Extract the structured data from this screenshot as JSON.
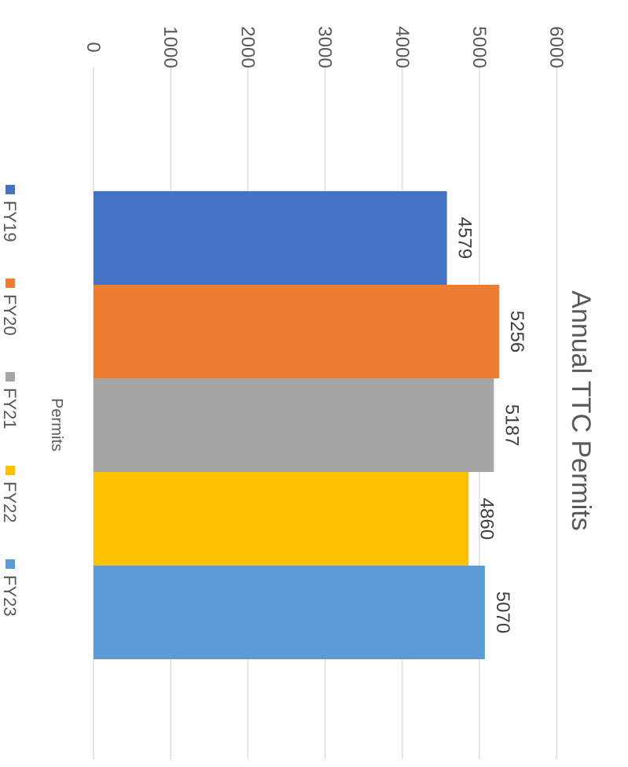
{
  "chart_data": {
    "type": "bar",
    "title": "Annual TTC Permits",
    "xlabel": "Permits",
    "ylabel": "",
    "categories": [
      "Permits"
    ],
    "series": [
      {
        "name": "FY19",
        "values": [
          4579
        ],
        "color": "#4472C4"
      },
      {
        "name": "FY20",
        "values": [
          5256
        ],
        "color": "#ED7D31"
      },
      {
        "name": "FY21",
        "values": [
          5187
        ],
        "color": "#A5A5A5"
      },
      {
        "name": "FY22",
        "values": [
          4860
        ],
        "color": "#FFC000"
      },
      {
        "name": "FY23",
        "values": [
          5070
        ],
        "color": "#5B9BD5"
      }
    ],
    "ylim": [
      0,
      6000
    ],
    "ticks": [
      "0",
      "1000",
      "2000",
      "3000",
      "4000",
      "5000",
      "6000"
    ],
    "grid": true,
    "data_labels": true,
    "legend_position": "bottom",
    "orientation": "rotated 90 degrees clockwise"
  }
}
